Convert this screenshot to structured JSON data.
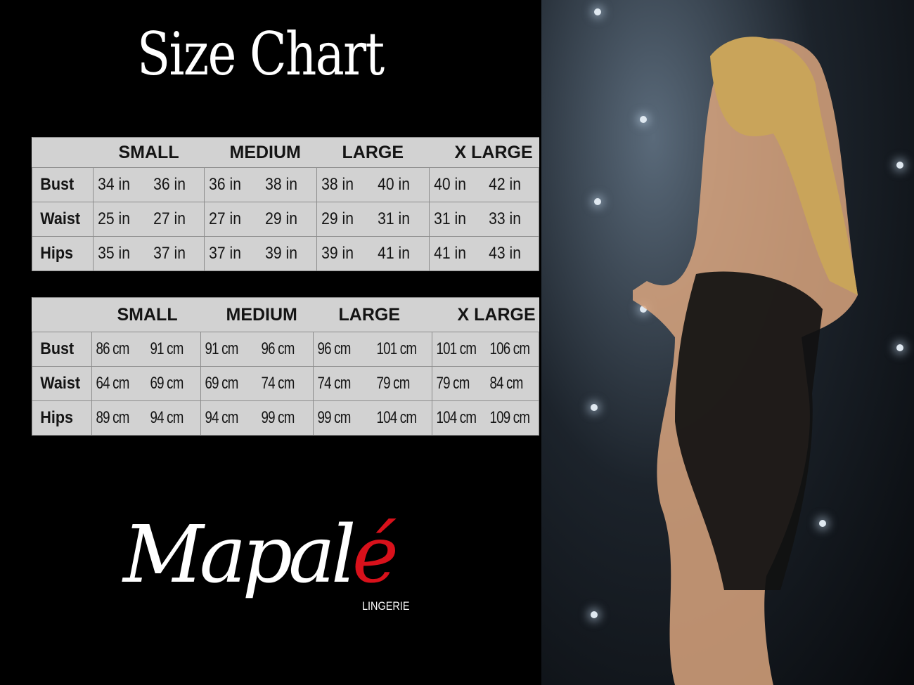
{
  "title": "Size Chart",
  "sizes": [
    "SMALL",
    "MEDIUM",
    "LARGE",
    "X LARGE"
  ],
  "inches_table": {
    "rows": [
      {
        "label": "Bust",
        "values": [
          "34 in",
          "36 in",
          "36 in",
          "38 in",
          "38 in",
          "40 in",
          "40 in",
          "42 in"
        ]
      },
      {
        "label": "Waist",
        "values": [
          "25 in",
          "27 in",
          "27 in",
          "29 in",
          "29 in",
          "31 in",
          "31 in",
          "33 in"
        ]
      },
      {
        "label": "Hips",
        "values": [
          "35 in",
          "37 in",
          "37 in",
          "39 in",
          "39 in",
          "41 in",
          "41 in",
          "43 in"
        ]
      }
    ]
  },
  "cm_table": {
    "rows": [
      {
        "label": "Bust",
        "values": [
          "86 cm",
          "91 cm",
          "91 cm",
          "96 cm",
          "96 cm",
          "101 cm",
          "101 cm",
          "106 cm"
        ]
      },
      {
        "label": "Waist",
        "values": [
          "64 cm",
          "69 cm",
          "69 cm",
          "74 cm",
          "74 cm",
          "79  cm",
          "79 cm",
          "84 cm"
        ]
      },
      {
        "label": "Hips",
        "values": [
          "89 cm",
          "94 cm",
          "94 cm",
          "99 cm",
          "99 cm",
          "104 cm",
          "104 cm",
          "109 cm"
        ]
      }
    ]
  },
  "logo": {
    "main": "Mapal",
    "accent": "é",
    "sub": "LINGERIE",
    "accent_color": "#d8111b"
  },
  "colors": {
    "background": "#000000",
    "table_bg": "#d2d2d2",
    "table_border": "#8d8d8d"
  }
}
